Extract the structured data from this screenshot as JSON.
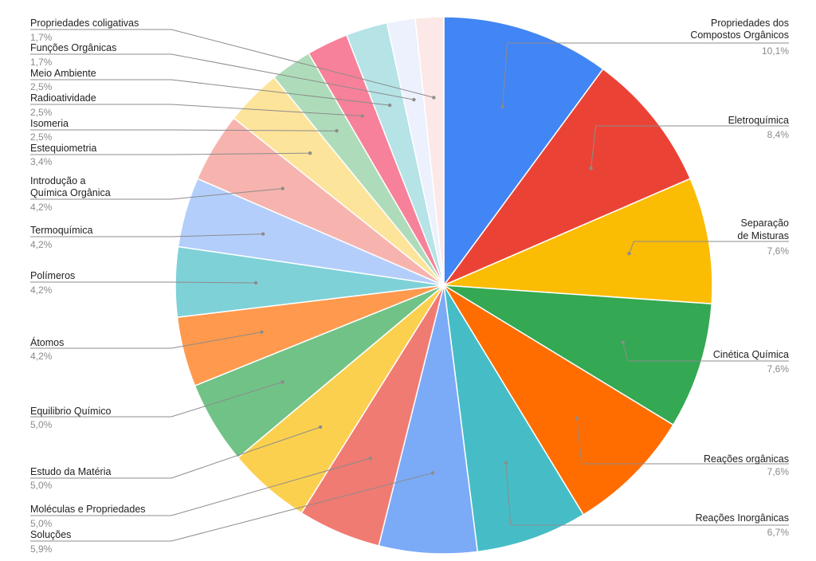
{
  "chart_data": {
    "type": "pie",
    "title": "",
    "series": [
      {
        "name": "Propriedades dos Compostos Orgânicos",
        "value": 10.1,
        "label": "10,1%",
        "color": "#4285F4"
      },
      {
        "name": "Eletroquímica",
        "value": 8.4,
        "label": "8,4%",
        "color": "#EA4335"
      },
      {
        "name": "Separação de Misturas",
        "value": 7.6,
        "label": "7,6%",
        "color": "#FBBC04"
      },
      {
        "name": "Cinética Química",
        "value": 7.6,
        "label": "7,6%",
        "color": "#34A853"
      },
      {
        "name": "Reações orgânicas",
        "value": 7.6,
        "label": "7,6%",
        "color": "#FF6D01"
      },
      {
        "name": "Reações Inorgânicas",
        "value": 6.7,
        "label": "6,7%",
        "color": "#46BDC6"
      },
      {
        "name": "Soluções",
        "value": 5.9,
        "label": "5,9%",
        "color": "#7BAAF7"
      },
      {
        "name": "Moléculas e Propriedades",
        "value": 5.0,
        "label": "5,0%",
        "color": "#F07B72"
      },
      {
        "name": "Estudo da Matéria",
        "value": 5.0,
        "label": "5,0%",
        "color": "#FCD04F"
      },
      {
        "name": "Equilibrio Químico",
        "value": 5.0,
        "label": "5,0%",
        "color": "#71C287"
      },
      {
        "name": "Átomos",
        "value": 4.2,
        "label": "4,2%",
        "color": "#FF994D"
      },
      {
        "name": "Polímeros",
        "value": 4.2,
        "label": "4,2%",
        "color": "#7ED1D7"
      },
      {
        "name": "Termoquímica",
        "value": 4.2,
        "label": "4,2%",
        "color": "#B3CEFB"
      },
      {
        "name": "Introdução a Química Orgânica",
        "value": 4.2,
        "label": "4,2%",
        "color": "#F7B4AE"
      },
      {
        "name": "Estequiometria",
        "value": 3.4,
        "label": "3,4%",
        "color": "#FDE49B"
      },
      {
        "name": "Isomeria",
        "value": 2.5,
        "label": "2,5%",
        "color": "#AEDCBA"
      },
      {
        "name": "Radioatividade",
        "value": 2.5,
        "label": "2,5%",
        "color": "#F7819A"
      },
      {
        "name": "Meio Ambiente",
        "value": 2.5,
        "label": "2,5%",
        "color": "#B5E3E6"
      },
      {
        "name": "Funções Orgânicas",
        "value": 1.7,
        "label": "1,7%",
        "color": "#ECF1FD"
      },
      {
        "name": "Propriedades coligativas",
        "value": 1.7,
        "label": "1,7%",
        "color": "#FCE8E6"
      }
    ],
    "legend": "none",
    "labels_placement": "outside with leader lines"
  }
}
